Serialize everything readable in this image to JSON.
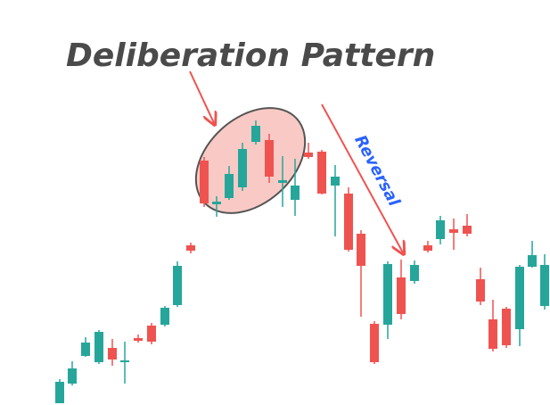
{
  "title": "Deliberation Pattern",
  "annotation": "Reversal"
}
